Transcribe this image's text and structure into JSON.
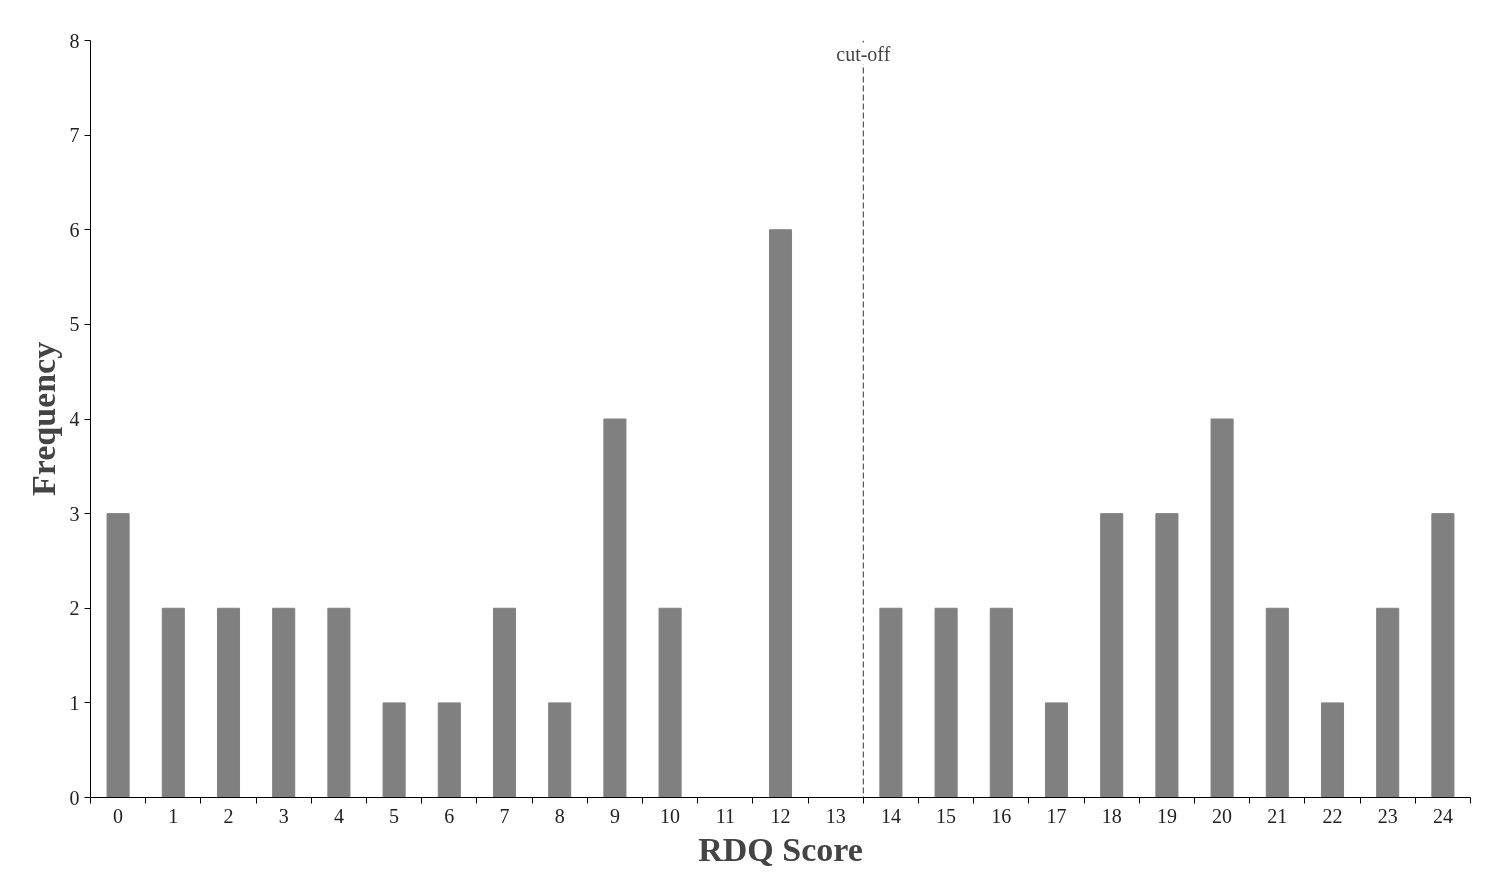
{
  "chart_data": {
    "type": "bar",
    "xlabel": "RDQ Score",
    "ylabel": "Frequency",
    "x": [
      0,
      1,
      2,
      3,
      4,
      5,
      6,
      7,
      8,
      9,
      10,
      11,
      12,
      13,
      14,
      15,
      16,
      17,
      18,
      19,
      20,
      21,
      22,
      23,
      24
    ],
    "values": [
      3,
      2,
      2,
      2,
      2,
      1,
      1,
      2,
      1,
      4,
      2,
      0,
      6,
      0,
      2,
      2,
      2,
      1,
      3,
      3,
      4,
      2,
      1,
      2,
      3
    ],
    "color": "#808080",
    "xlim": [
      -0.5,
      24.5
    ],
    "xticks": [
      0,
      1,
      2,
      3,
      4,
      5,
      6,
      7,
      8,
      9,
      10,
      11,
      12,
      13,
      14,
      15,
      16,
      17,
      18,
      19,
      20,
      21,
      22,
      23,
      24
    ],
    "ylim": [
      0,
      8
    ],
    "yticks": [
      0,
      1,
      2,
      3,
      4,
      5,
      6,
      7,
      8
    ],
    "grid": false,
    "ref_lines": [
      {
        "axis": "x",
        "value": 13.5,
        "label": "cut-off",
        "line_style": "dashed",
        "color": "#333333"
      }
    ]
  }
}
